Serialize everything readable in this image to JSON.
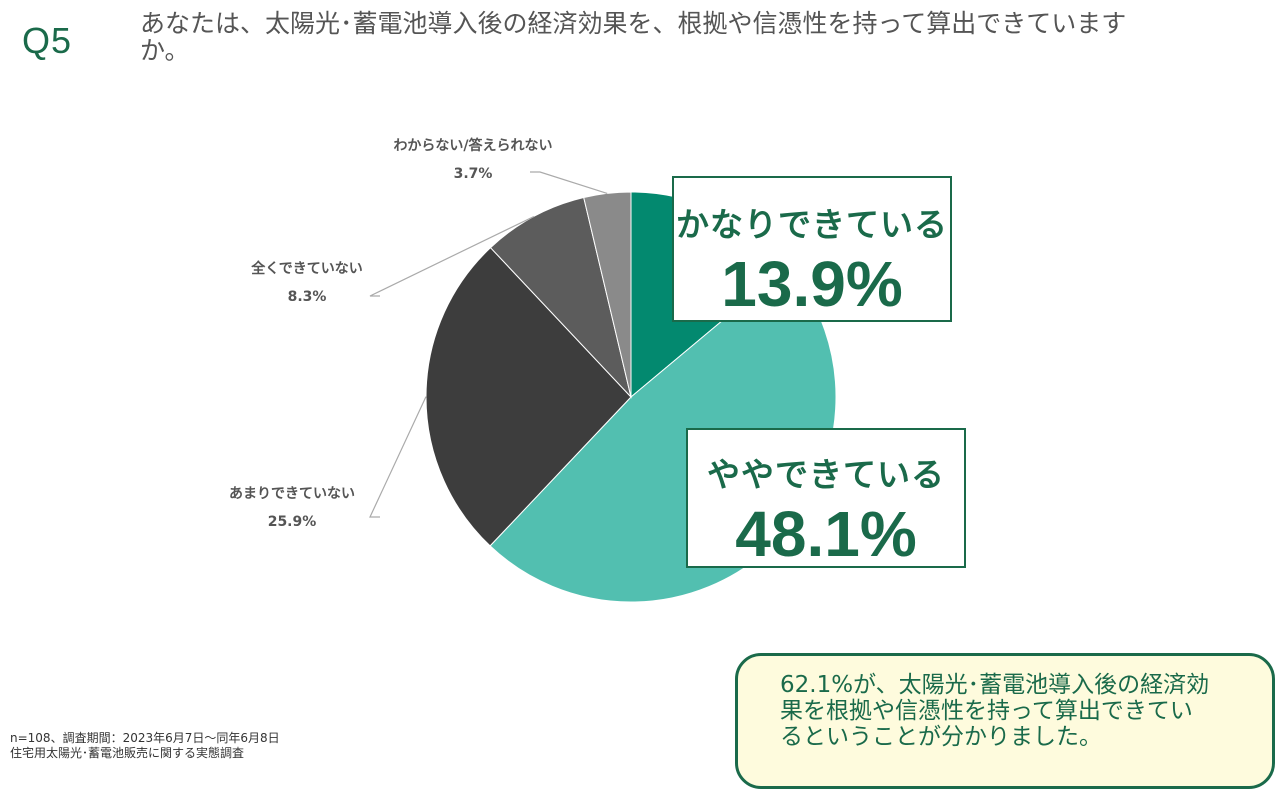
{
  "question": {
    "number": "Q5",
    "text": "あなたは、太陽光･蓄電池導入後の経済効果を、根拠や信憑性を持って算出できています\nか。"
  },
  "chart_data": {
    "type": "pie",
    "categories": [
      "かなりできている",
      "ややできている",
      "あまりできていない",
      "全くできていない",
      "わからない/答えられない"
    ],
    "values": [
      13.9,
      48.1,
      25.9,
      8.3,
      3.7
    ],
    "labels": [
      "13.9%",
      "48.1%",
      "25.9%",
      "8.3%",
      "3.7%"
    ],
    "colors": [
      "#03896f",
      "#52bfb0",
      "#3d3d3d",
      "#5c5c5c",
      "#8a8a8a"
    ],
    "start": "12 o'clock",
    "direction": "clockwise"
  },
  "footnote": {
    "line1": "n=108、調査期間：2023年6月7日～同年6月8日",
    "line2": "住宅用太陽光･蓄電池販売に関する実態調査"
  },
  "summary": {
    "text": "62.1%が、太陽光･蓄電池導入後の経済効\n果を根拠や信憑性を持って算出できてい\nるということが分かりました。"
  },
  "colors": {
    "accent": "#1a6a4a",
    "summary_bg": "#fefbdd"
  }
}
